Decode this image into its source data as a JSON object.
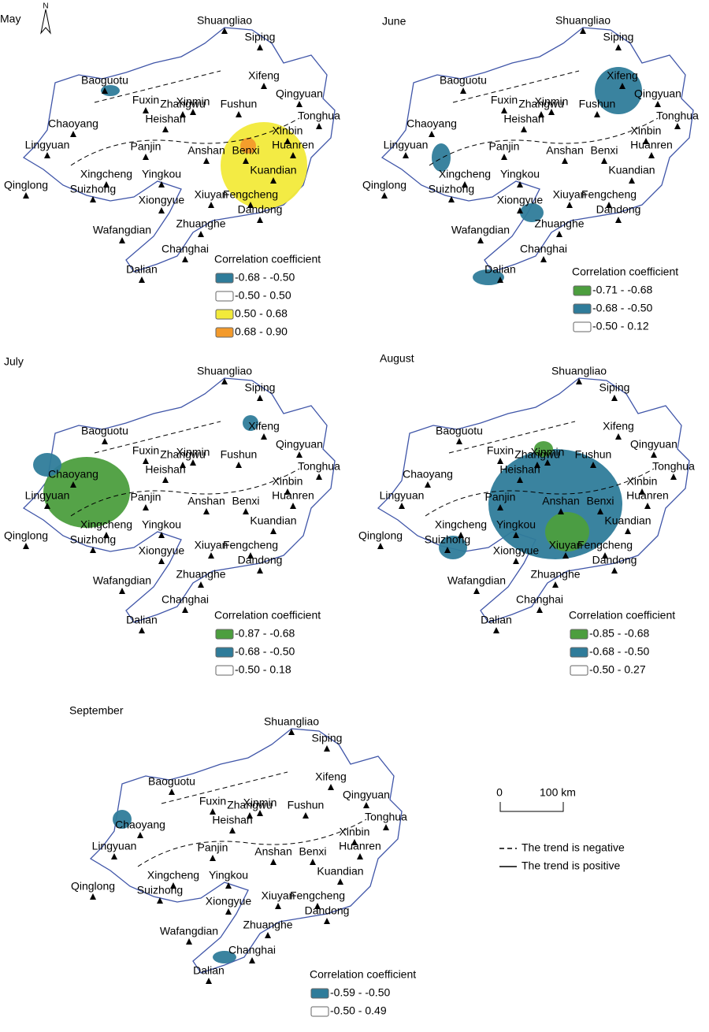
{
  "stations": [
    "Shuangliao",
    "Siping",
    "Baoguotu",
    "Zhangwu",
    "Xifeng",
    "Fuxin",
    "Xinmin",
    "Fushun",
    "Qingyuan",
    "Heishan",
    "Tonghua",
    "Chaoyang",
    "Xinbin",
    "Huanren",
    "Lingyuan",
    "Panjin",
    "Anshan",
    "Benxi",
    "Xingcheng",
    "Yingkou",
    "Kuandian",
    "Qinglong",
    "Suizhong",
    "Xiuyan",
    "Fengcheng",
    "Xiongyue",
    "Dandong",
    "Wafangdian",
    "Zhuanghe",
    "Changhai",
    "Dalian"
  ],
  "north_label": "N",
  "panels": [
    {
      "title": "May",
      "legend_title": "Correlation coefficient",
      "legend": [
        {
          "label": "-0.68 - -0.50",
          "color": "#2f7c9a"
        },
        {
          "label": "-0.50 - 0.50",
          "color": "#ffffff"
        },
        {
          "label": "0.50 - 0.68",
          "color": "#f2ea3a"
        },
        {
          "label": "0.68 - 0.90",
          "color": "#f39a2b"
        }
      ]
    },
    {
      "title": "June",
      "legend_title": "Correlation coefficient",
      "legend": [
        {
          "label": "-0.71 - -0.68",
          "color": "#4c9e3e"
        },
        {
          "label": "-0.68 - -0.50",
          "color": "#2f7c9a"
        },
        {
          "label": "-0.50 - 0.12",
          "color": "#ffffff"
        }
      ]
    },
    {
      "title": "July",
      "legend_title": "Correlation coefficient",
      "legend": [
        {
          "label": "-0.87 - -0.68",
          "color": "#4c9e3e"
        },
        {
          "label": "-0.68 - -0.50",
          "color": "#2f7c9a"
        },
        {
          "label": "-0.50 - 0.18",
          "color": "#ffffff"
        }
      ]
    },
    {
      "title": "August",
      "legend_title": "Correlation coefficient",
      "legend": [
        {
          "label": "-0.85 - -0.68",
          "color": "#4c9e3e"
        },
        {
          "label": "-0.68 - -0.50",
          "color": "#2f7c9a"
        },
        {
          "label": "-0.50 - 0.27",
          "color": "#ffffff"
        }
      ]
    },
    {
      "title": "September",
      "legend_title": "Correlation coefficient",
      "legend": [
        {
          "label": "-0.59 - -0.50",
          "color": "#2f7c9a"
        },
        {
          "label": "-0.50 - 0.49",
          "color": "#ffffff"
        }
      ]
    }
  ],
  "scale_bar": {
    "start": "0",
    "end": "100 km"
  },
  "trend_legend": [
    "The trend is negative",
    "The trend is positive"
  ]
}
